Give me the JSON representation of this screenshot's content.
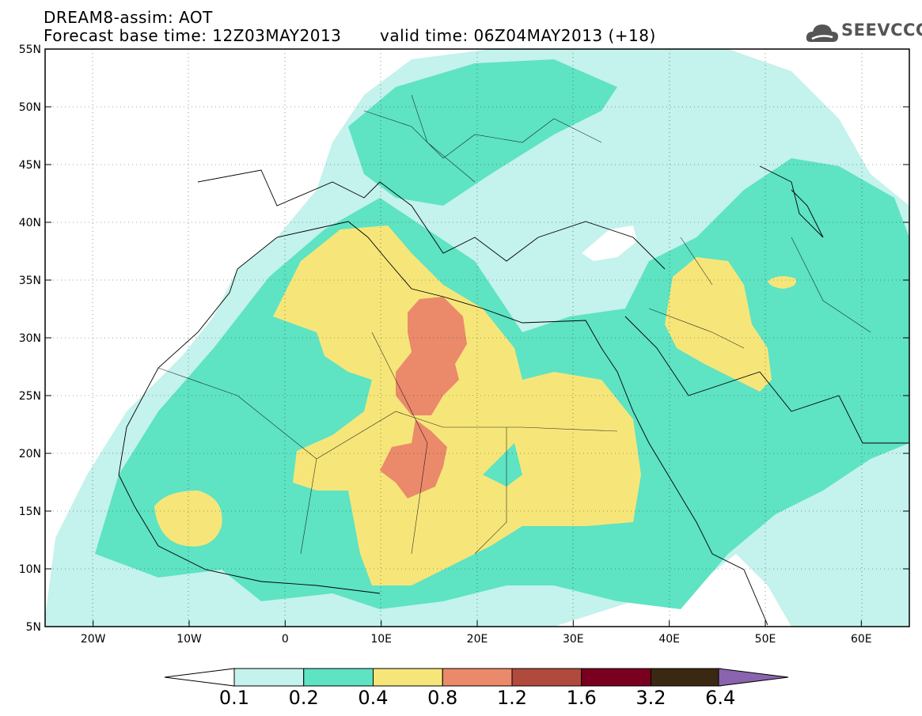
{
  "header": {
    "title": "DREAM8-assim: AOT",
    "base_time": "Forecast base time: 12Z03MAY2013",
    "valid_time": "valid time: 06Z04MAY2013 (+18)"
  },
  "logo": {
    "text": "SEEVCCC",
    "icon": "cloud-logo-icon"
  },
  "map": {
    "lat_ticks": [
      "55N",
      "50N",
      "45N",
      "40N",
      "35N",
      "30N",
      "25N",
      "20N",
      "15N",
      "10N",
      "5N"
    ],
    "lon_ticks": [
      "20W",
      "10W",
      "0",
      "10E",
      "20E",
      "30E",
      "40E",
      "50E",
      "60E"
    ],
    "extent": {
      "lon": [
        -25,
        65
      ],
      "lat": [
        5,
        55
      ]
    },
    "grid": "dotted"
  },
  "colorbar": {
    "labels": [
      "0.1",
      "0.2",
      "0.4",
      "0.8",
      "1.2",
      "1.6",
      "3.2",
      "6.4"
    ],
    "colors": [
      "#c4f2ec",
      "#5ee3c3",
      "#f6e67a",
      "#ea8a6a",
      "#b04a3c",
      "#7a0020",
      "#3a2812",
      "#8a64ae"
    ]
  }
}
